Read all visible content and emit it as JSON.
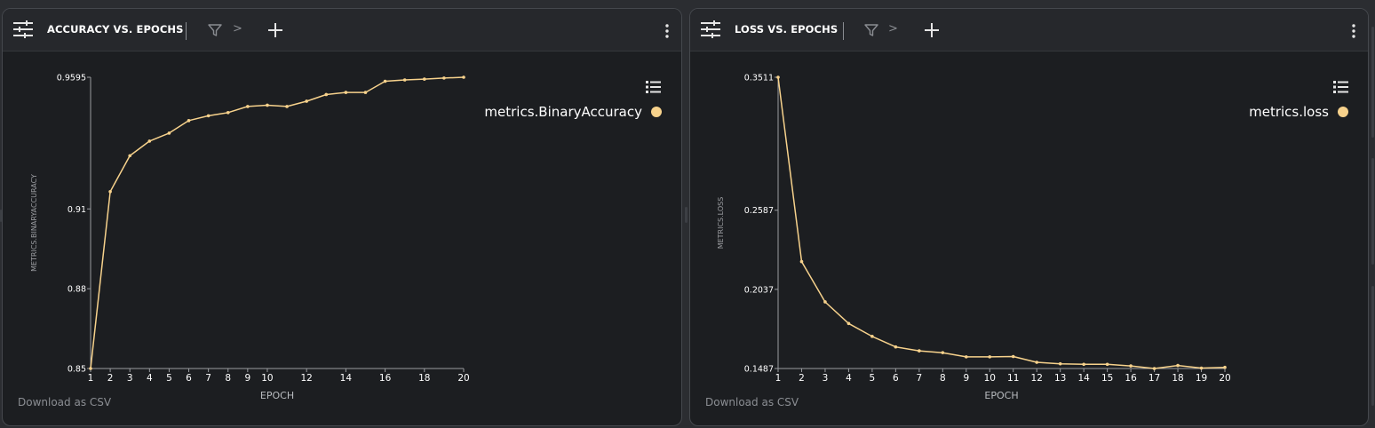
{
  "colors": {
    "background": "#2b2d31",
    "panel": "#1c1e21",
    "line": "#f7d28c",
    "axis": "#9a9ca0",
    "text": "#ffffff",
    "muted": "#8b8e93"
  },
  "panels": [
    {
      "title": "ACCURACY VS. EPOCHS",
      "download_label": "Download as CSV",
      "legend_label": "metrics.BinaryAccuracy",
      "icons": {
        "settings": "sliders-icon",
        "filter": "filter-icon",
        "chevron": "chevron-right-icon",
        "add": "plus-icon",
        "menu": "kebab-menu-icon",
        "legend": "list-icon"
      },
      "chevron": ">",
      "chart_data": {
        "type": "line",
        "title": "",
        "xlabel": "EPOCH",
        "ylabel": "METRICS.BINARYACCURACY",
        "xlim": [
          1,
          20
        ],
        "ylim": [
          0.85,
          0.9595
        ],
        "xticks": [
          1,
          2,
          3,
          4,
          5,
          6,
          7,
          8,
          9,
          10,
          12,
          14,
          16,
          18,
          20
        ],
        "yticks": [
          0.85,
          0.88,
          0.91,
          0.9595
        ],
        "ytick_labels": [
          "0.85",
          "0.88",
          "0.91",
          "0.9595"
        ],
        "grid": false,
        "legend_position": "top-right",
        "series": [
          {
            "name": "metrics.BinaryAccuracy",
            "x": [
              1,
              2,
              3,
              4,
              5,
              6,
              7,
              8,
              9,
              10,
              11,
              12,
              13,
              14,
              15,
              16,
              17,
              18,
              19,
              20
            ],
            "y": [
              0.85,
              0.9165,
              0.93,
              0.9355,
              0.9385,
              0.9432,
              0.945,
              0.9462,
              0.9485,
              0.949,
              0.9485,
              0.9505,
              0.953,
              0.9538,
              0.9538,
              0.958,
              0.9585,
              0.9588,
              0.9592,
              0.9595
            ]
          }
        ]
      }
    },
    {
      "title": "LOSS VS. EPOCHS",
      "download_label": "Download as CSV",
      "legend_label": "metrics.loss",
      "icons": {
        "settings": "sliders-icon",
        "filter": "filter-icon",
        "chevron": "chevron-right-icon",
        "add": "plus-icon",
        "menu": "kebab-menu-icon",
        "legend": "list-icon"
      },
      "chevron": ">",
      "chart_data": {
        "type": "line",
        "title": "",
        "xlabel": "EPOCH",
        "ylabel": "METRICS.LOSS",
        "xlim": [
          1,
          20
        ],
        "ylim": [
          0.1487,
          0.3511
        ],
        "xticks": [
          1,
          2,
          3,
          4,
          5,
          6,
          7,
          8,
          9,
          10,
          11,
          12,
          13,
          14,
          15,
          16,
          17,
          18,
          19,
          20
        ],
        "yticks": [
          0.1487,
          0.2037,
          0.2587,
          0.3511
        ],
        "ytick_labels": [
          "0.1487",
          "0.2037",
          "0.2587",
          "0.3511"
        ],
        "grid": false,
        "legend_position": "top-right",
        "series": [
          {
            "name": "metrics.loss",
            "x": [
              1,
              2,
              3,
              4,
              5,
              6,
              7,
              8,
              9,
              10,
              11,
              12,
              13,
              14,
              15,
              16,
              17,
              18,
              19,
              20
            ],
            "y": [
              0.3511,
              0.223,
              0.195,
              0.18,
              0.171,
              0.1637,
              0.161,
              0.1597,
              0.1568,
              0.1568,
              0.157,
              0.153,
              0.152,
              0.1516,
              0.1516,
              0.1505,
              0.1487,
              0.1508,
              0.149,
              0.1495
            ]
          }
        ]
      }
    }
  ]
}
